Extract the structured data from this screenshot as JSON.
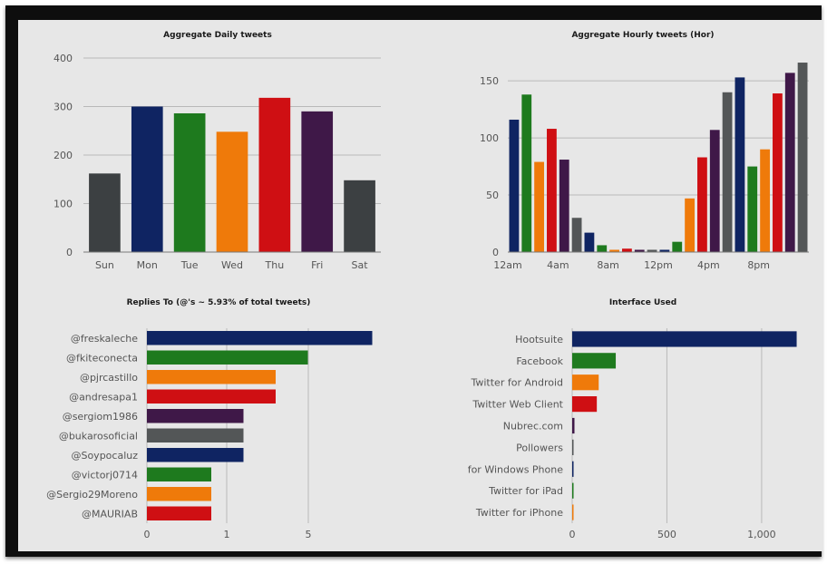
{
  "colors": {
    "gray": "#3c4042",
    "navy": "#0f2462",
    "green": "#1e7a1e",
    "orange": "#ef7a0a",
    "red": "#cf0f13",
    "purple": "#3f1848",
    "dkgray": "#535657"
  },
  "chart_data": [
    {
      "type": "bar",
      "title": "Aggregate Daily tweets",
      "categories": [
        "Sun",
        "Mon",
        "Tue",
        "Wed",
        "Thu",
        "Fri",
        "Sat"
      ],
      "values": [
        162,
        300,
        286,
        248,
        318,
        290,
        148
      ],
      "bar_colors": [
        "#3c4042",
        "#0f2462",
        "#1e7a1e",
        "#ef7a0a",
        "#cf0f13",
        "#3f1848",
        "#3c4042"
      ],
      "yticks": [
        0,
        100,
        200,
        300,
        400
      ],
      "ylim": [
        0,
        400
      ],
      "grid": true,
      "legend": "none"
    },
    {
      "type": "bar",
      "title": "Aggregate Hourly tweets (Hor)",
      "categories": [
        "12am",
        "1am",
        "2am",
        "3am",
        "4am",
        "5am",
        "6am",
        "7am",
        "8am",
        "9am",
        "10am",
        "11am",
        "12pm",
        "1pm",
        "2pm",
        "3pm",
        "4pm",
        "5pm",
        "6pm",
        "7pm",
        "8pm",
        "9pm",
        "10pm",
        "11pm"
      ],
      "values": [
        116,
        138,
        79,
        108,
        81,
        30,
        17,
        6,
        2,
        3,
        2,
        2,
        2,
        9,
        47,
        83,
        107,
        140,
        153,
        75,
        90,
        139,
        157,
        166
      ],
      "bar_colors": [
        "#0f2462",
        "#1e7a1e",
        "#ef7a0a",
        "#cf0f13",
        "#3f1848",
        "#535657",
        "#0f2462",
        "#1e7a1e",
        "#ef7a0a",
        "#cf0f13",
        "#3f1848",
        "#535657",
        "#0f2462",
        "#1e7a1e",
        "#ef7a0a",
        "#cf0f13",
        "#3f1848",
        "#535657",
        "#0f2462",
        "#1e7a1e",
        "#ef7a0a",
        "#cf0f13",
        "#3f1848",
        "#535657"
      ],
      "xtick_labels": [
        "12am",
        "4am",
        "8am",
        "12pm",
        "4pm",
        "8pm"
      ],
      "yticks": [
        0,
        50,
        100,
        150
      ],
      "ylim": [
        0,
        170
      ],
      "grid": true,
      "legend": "none"
    },
    {
      "type": "bar",
      "orientation": "horizontal",
      "title": "Replies To (@'s ~ 5.93% of total tweets)",
      "categories": [
        "@freskaleche",
        "@fkiteconecta",
        "@pjrcastillo",
        "@andresapa1",
        "@sergiom1986",
        "@bukarosoficial",
        "@Soypocaluz",
        "@victorj0714",
        "@Sergio29Moreno",
        "@MAURIAB"
      ],
      "values": [
        7,
        5,
        4,
        4,
        3,
        3,
        3,
        2,
        2,
        2
      ],
      "bar_colors": [
        "#0f2462",
        "#1e7a1e",
        "#ef7a0a",
        "#cf0f13",
        "#3f1848",
        "#535657",
        "#0f2462",
        "#1e7a1e",
        "#ef7a0a",
        "#cf0f13"
      ],
      "xtick_labels": [
        "0",
        "1",
        "5"
      ],
      "grid": true,
      "legend": "none"
    },
    {
      "type": "bar",
      "orientation": "horizontal",
      "title": "Interface Used",
      "categories": [
        "Hootsuite",
        "Facebook",
        "Twitter for Android",
        "Twitter Web Client",
        "Nubrec.com",
        "Pollowers",
        "for Windows Phone",
        "Twitter for iPad",
        "Twitter for iPhone"
      ],
      "values": [
        1185,
        230,
        140,
        130,
        12,
        4,
        4,
        3,
        3
      ],
      "bar_colors": [
        "#0f2462",
        "#1e7a1e",
        "#ef7a0a",
        "#cf0f13",
        "#3f1848",
        "#535657",
        "#0f2462",
        "#1e7a1e",
        "#ef7a0a"
      ],
      "xticks": [
        0,
        500,
        1000
      ],
      "xtick_labels": [
        "0",
        "500",
        "1,000"
      ],
      "xlim": [
        0,
        1250
      ],
      "grid": true,
      "legend": "none"
    }
  ]
}
